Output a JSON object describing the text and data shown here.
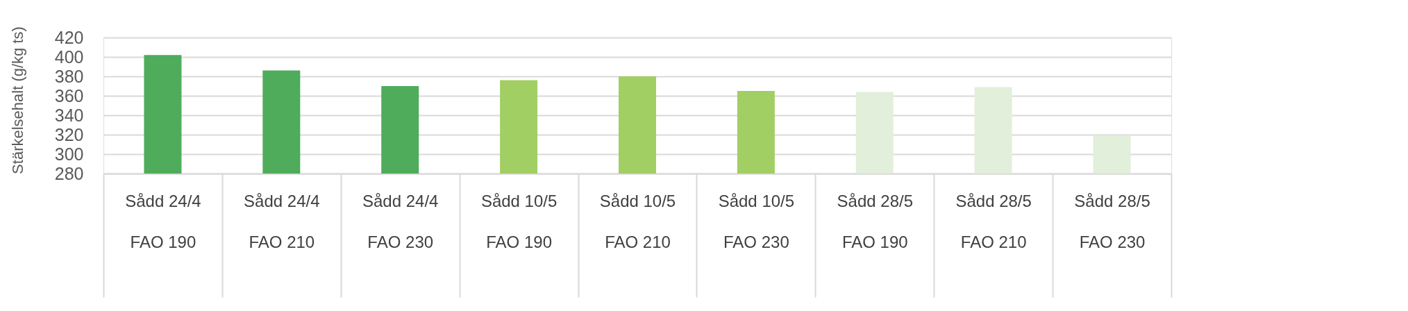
{
  "chart_data": {
    "type": "bar",
    "ylabel": "Stärkelsehalt (g/kg ts)",
    "categories": [
      "Sådd 24/4\nFAO 190",
      "Sådd 24/4\nFAO 210",
      "Sådd 24/4\nFAO 230",
      "Sådd 10/5\nFAO 190",
      "Sådd 10/5\nFAO 210",
      "Sådd 10/5\nFAO 230",
      "Sådd 28/5\nFAO 190",
      "Sådd 28/5\nFAO 210",
      "Sådd 28/5\nFAO 230"
    ],
    "values": [
      402,
      386,
      370,
      376,
      380,
      365,
      364,
      369,
      319
    ],
    "colors": [
      "#4eac5b",
      "#4eac5b",
      "#4eac5b",
      "#a1cf63",
      "#a1cf63",
      "#a1cf63",
      "#e2efda",
      "#e2efda",
      "#e2efda"
    ],
    "ylim": [
      280,
      420
    ],
    "yticks": [
      280,
      300,
      320,
      340,
      360,
      380,
      400,
      420
    ],
    "grid": "y"
  }
}
